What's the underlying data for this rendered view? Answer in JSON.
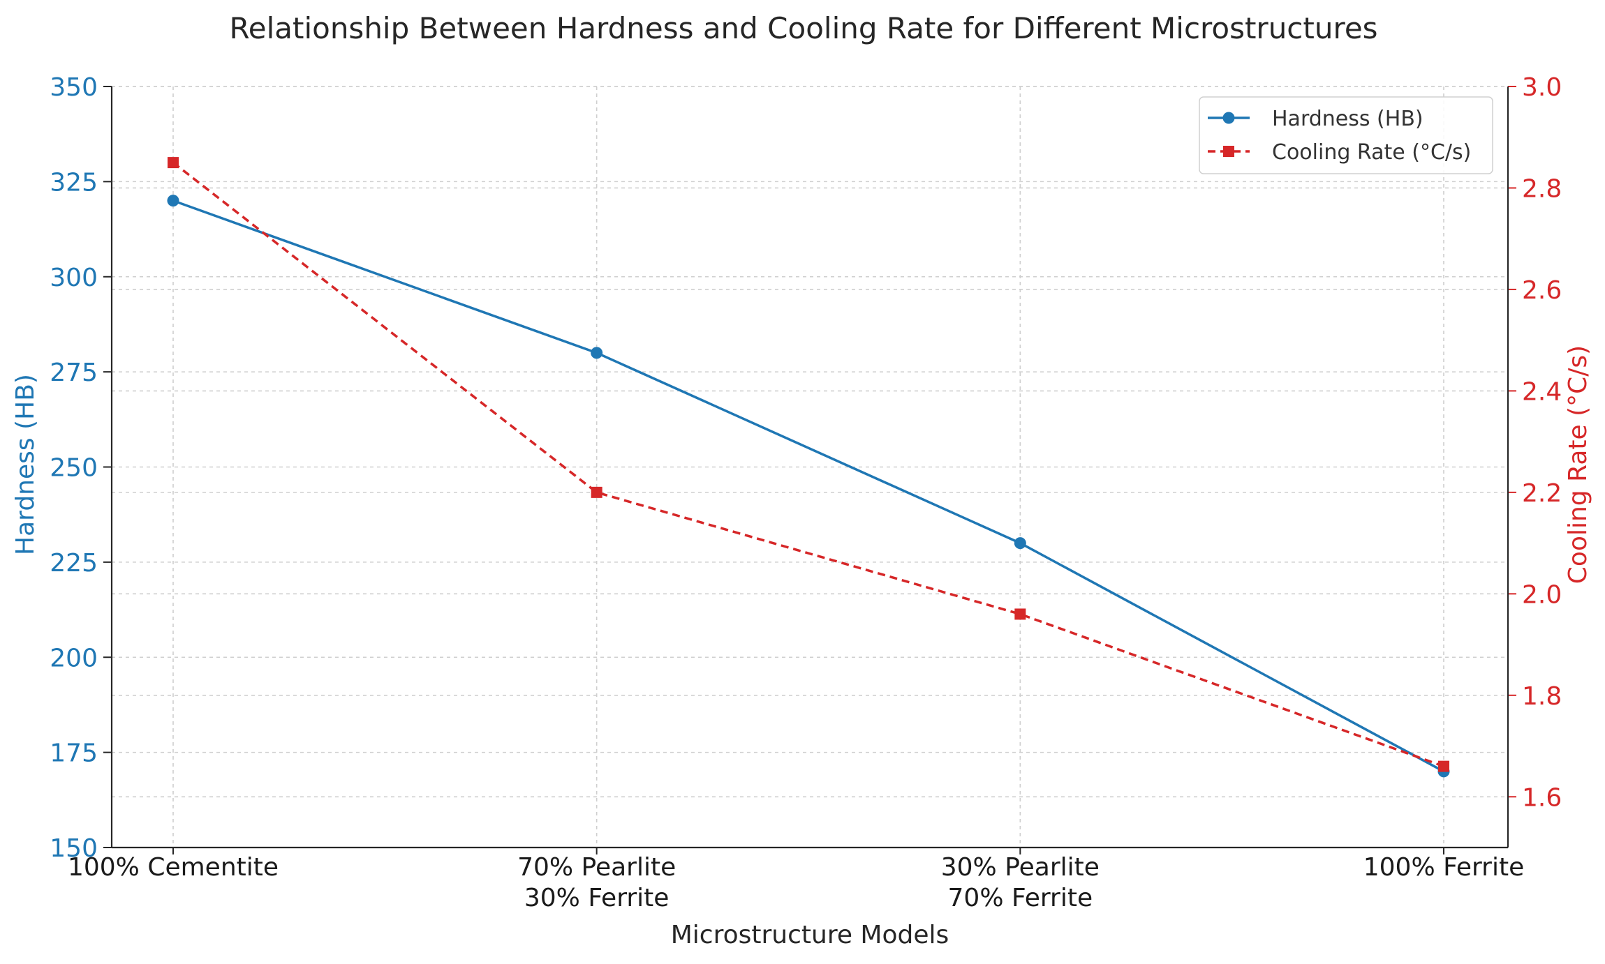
{
  "chart_data": {
    "type": "line",
    "title": "Relationship Between Hardness and Cooling Rate for Different Microstructures",
    "xlabel": "Microstructure Models",
    "categories": [
      [
        "100% Cementite"
      ],
      [
        "70% Pearlite",
        "30% Ferrite"
      ],
      [
        "30% Pearlite",
        "70% Ferrite"
      ],
      [
        "100% Ferrite"
      ]
    ],
    "y_left": {
      "label": "Hardness (HB)",
      "ylim": [
        150,
        350
      ],
      "ticks": [
        "150",
        "175",
        "200",
        "225",
        "250",
        "275",
        "300",
        "325",
        "350"
      ],
      "color": "#1f77b4"
    },
    "y_right": {
      "label": "Cooling Rate (°C/s)",
      "ylim": [
        1.5,
        3.0
      ],
      "ticks": [
        "1.6",
        "1.8",
        "2.0",
        "2.2",
        "2.4",
        "2.6",
        "2.8",
        "3.0"
      ],
      "color": "#d62728"
    },
    "series": [
      {
        "name": "Hardness (HB)",
        "axis": "left",
        "values": [
          320,
          280,
          230,
          170
        ],
        "color": "#1f77b4",
        "marker": "circle",
        "style": "solid"
      },
      {
        "name": "Cooling Rate (°C/s)",
        "axis": "right",
        "values": [
          2.85,
          2.2,
          1.96,
          1.66
        ],
        "color": "#d62728",
        "marker": "square",
        "style": "dashed"
      }
    ],
    "grid": true,
    "legend_position": "top-right"
  }
}
